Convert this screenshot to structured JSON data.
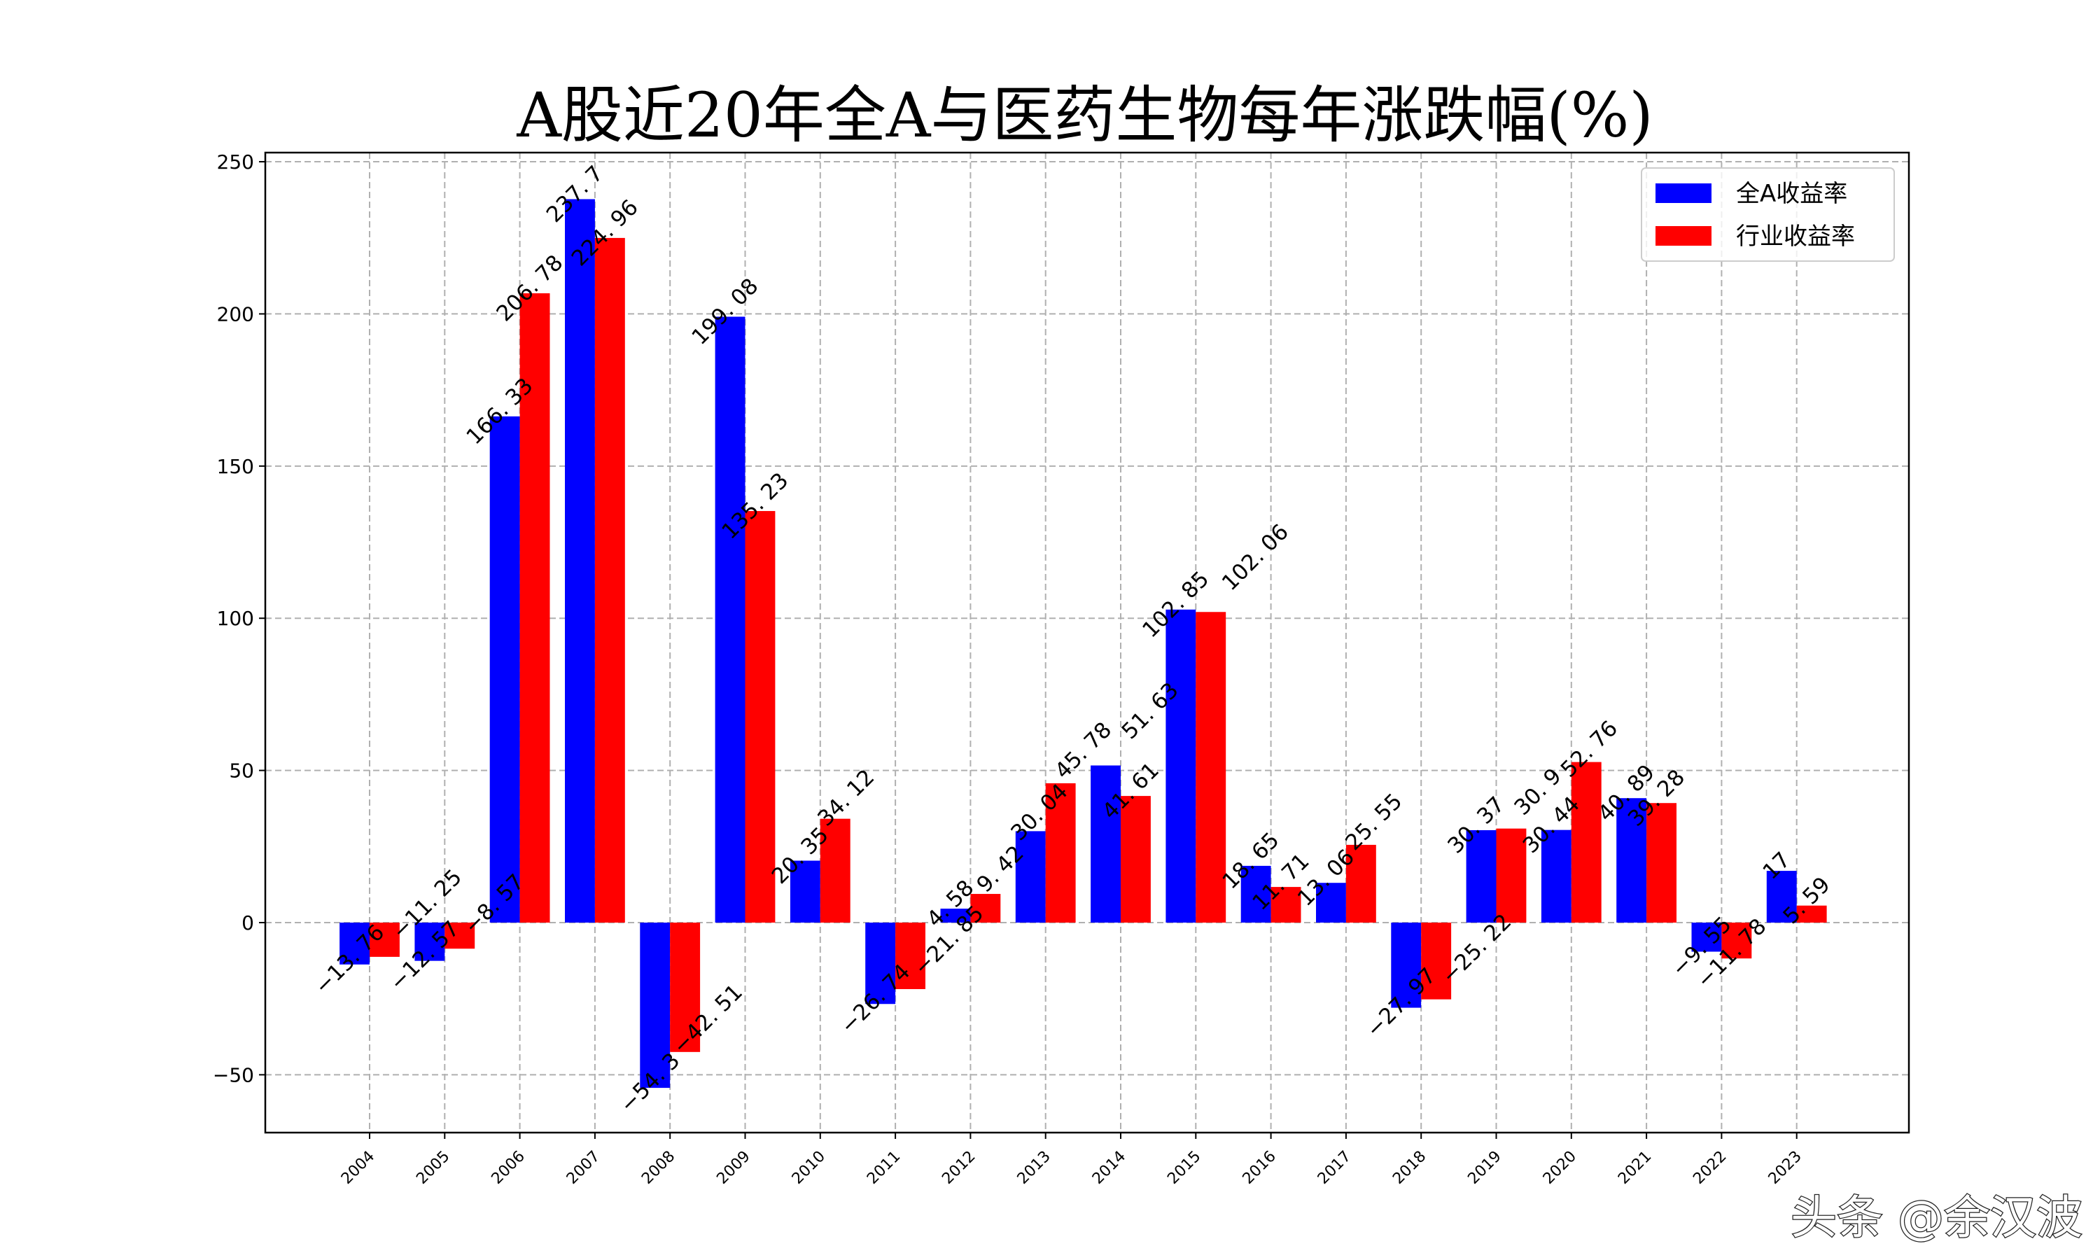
{
  "chart_data": {
    "type": "bar",
    "title": "A股近20年全A与医药生物每年涨跌幅(%)",
    "xlabel": "",
    "ylabel": "",
    "categories": [
      "2004",
      "2005",
      "2006",
      "2007",
      "2008",
      "2009",
      "2010",
      "2011",
      "2012",
      "2013",
      "2014",
      "2015",
      "2016",
      "2017",
      "2018",
      "2019",
      "2020",
      "2021",
      "2022",
      "2023"
    ],
    "series": [
      {
        "name": "全A收益率",
        "color": "#0000ff",
        "values": [
          -13.76,
          -12.57,
          166.33,
          237.7,
          -54.3,
          199.08,
          20.35,
          -26.74,
          4.58,
          30.04,
          51.63,
          102.85,
          18.65,
          13.06,
          -27.97,
          30.37,
          30.44,
          40.89,
          -9.55,
          17.0
        ]
      },
      {
        "name": "行业收益率",
        "color": "#ff0000",
        "values": [
          -11.25,
          -8.57,
          206.78,
          224.96,
          -42.51,
          135.23,
          34.12,
          -21.85,
          9.42,
          45.78,
          41.61,
          102.06,
          11.71,
          25.55,
          -25.22,
          30.9,
          52.76,
          39.28,
          -11.78,
          5.59
        ]
      }
    ],
    "yticks": [
      -50,
      0,
      50,
      100,
      150,
      200,
      250
    ],
    "ylim": [
      -69,
      253
    ],
    "grid": true,
    "legend_position": "top-right"
  },
  "watermark": "头条 @余汉波"
}
